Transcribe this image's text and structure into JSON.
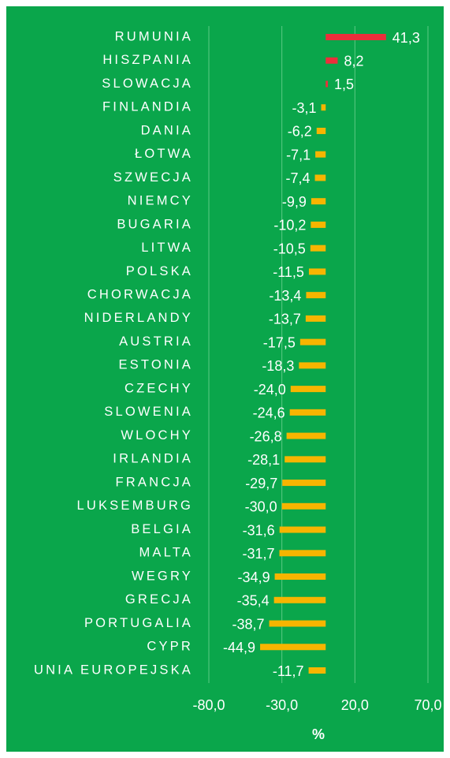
{
  "chart_data": {
    "type": "barh",
    "categories": [
      "RUMUNIA",
      "HISZPANIA",
      "SLOWACJA",
      "FINLANDIA",
      "DANIA",
      "ŁOTWA",
      "SZWECJA",
      "NIEMCY",
      "BUGARIA",
      "LITWA",
      "POLSKA",
      "CHORWACJA",
      "NIDERLANDY",
      "AUSTRIA",
      "ESTONIA",
      "CZECHY",
      "SLOWENIA",
      "WLOCHY",
      "IRLANDIA",
      "FRANCJA",
      "LUKSEMBURG",
      "BELGIA",
      "MALTA",
      "WEGRY",
      "GRECJA",
      "PORTUGALIA",
      "CYPR",
      "UNIA EUROPEJSKA"
    ],
    "values": [
      41.3,
      8.2,
      1.5,
      -3.1,
      -6.2,
      -7.1,
      -7.4,
      -9.9,
      -10.2,
      -10.5,
      -11.5,
      -13.4,
      -13.7,
      -17.5,
      -18.3,
      -24.0,
      -24.6,
      -26.8,
      -28.1,
      -29.7,
      -30.0,
      -31.6,
      -31.7,
      -34.9,
      -35.4,
      -38.7,
      -44.9,
      -11.7
    ],
    "value_labels": [
      "41,3",
      "8,2",
      "1,5",
      "-3,1",
      "-6,2",
      "-7,1",
      "-7,4",
      "-9,9",
      "-10,2",
      "-10,5",
      "-11,5",
      "-13,4",
      "-13,7",
      "-17,5",
      "-18,3",
      "-24,0",
      "-24,6",
      "-26,8",
      "-28,1",
      "-29,7",
      "-30,0",
      "-31,6",
      "-31,7",
      "-34,9",
      "-35,4",
      "-38,7",
      "-44,9",
      "-11,7"
    ],
    "positive_color": "#ec2f3b",
    "negative_color": "#f7b500",
    "xlabel": "%",
    "xlim": [
      -80,
      70
    ],
    "xticks": [
      {
        "value": -80,
        "label": "-80,0"
      },
      {
        "value": -30,
        "label": "-30,0"
      },
      {
        "value": 20,
        "label": "20,0"
      },
      {
        "value": 70,
        "label": "70,0"
      }
    ],
    "grid": true
  }
}
